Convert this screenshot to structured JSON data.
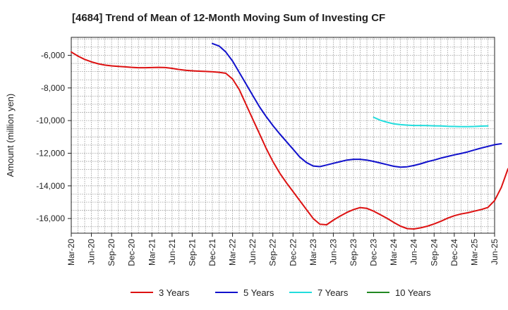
{
  "chart_data": {
    "type": "line",
    "title": "[4684]  Trend of Mean of 12-Month Moving Sum of Investing CF",
    "xlabel": "",
    "ylabel": "Amount (million yen)",
    "ylim": [
      -16900,
      -4900
    ],
    "yticks": [
      -6000,
      -8000,
      -10000,
      -12000,
      -14000,
      -16000
    ],
    "ytick_labels": [
      "-6,000",
      "-8,000",
      "-10,000",
      "-12,000",
      "-14,000",
      "-16,000"
    ],
    "x_start": "Mar-20",
    "x_end": "Jun-25",
    "xtick_labels": [
      "Mar-20",
      "Jun-20",
      "Sep-20",
      "Dec-20",
      "Mar-21",
      "Jun-21",
      "Sep-21",
      "Dec-21",
      "Mar-22",
      "Jun-22",
      "Sep-22",
      "Dec-22",
      "Mar-23",
      "Jun-23",
      "Sep-23",
      "Dec-23",
      "Mar-24",
      "Jun-24",
      "Sep-24",
      "Dec-24",
      "Mar-25",
      "Jun-25"
    ],
    "grid": true,
    "legend_position": "bottom",
    "series": [
      {
        "name": "3 Years",
        "color": "#dd1111",
        "start_month": 0,
        "values": [
          -5800,
          -6050,
          -6250,
          -6400,
          -6520,
          -6600,
          -6650,
          -6680,
          -6710,
          -6740,
          -6760,
          -6760,
          -6750,
          -6740,
          -6750,
          -6800,
          -6870,
          -6920,
          -6950,
          -6970,
          -6990,
          -7010,
          -7040,
          -7100,
          -7450,
          -8100,
          -9000,
          -9900,
          -10800,
          -11700,
          -12500,
          -13200,
          -13800,
          -14350,
          -14900,
          -15450,
          -16000,
          -16350,
          -16380,
          -16100,
          -15850,
          -15630,
          -15450,
          -15330,
          -15380,
          -15550,
          -15770,
          -15990,
          -16240,
          -16470,
          -16620,
          -16640,
          -16570,
          -16470,
          -16330,
          -16170,
          -15980,
          -15830,
          -15720,
          -15650,
          -15550,
          -15450,
          -15320,
          -14900,
          -14100,
          -12950
        ]
      },
      {
        "name": "5 Years",
        "color": "#1111cc",
        "start_month": 21,
        "values": [
          -5280,
          -5430,
          -5800,
          -6350,
          -7050,
          -7750,
          -8450,
          -9150,
          -9750,
          -10300,
          -10800,
          -11280,
          -11750,
          -12230,
          -12570,
          -12780,
          -12820,
          -12720,
          -12620,
          -12520,
          -12420,
          -12370,
          -12370,
          -12420,
          -12500,
          -12600,
          -12700,
          -12800,
          -12850,
          -12830,
          -12750,
          -12650,
          -12520,
          -12420,
          -12300,
          -12200,
          -12100,
          -12020,
          -11920,
          -11800,
          -11680,
          -11580,
          -11480,
          -11420
        ]
      },
      {
        "name": "7 Years",
        "color": "#22dddd",
        "start_month": 45,
        "values": [
          -9800,
          -9980,
          -10100,
          -10200,
          -10250,
          -10280,
          -10300,
          -10300,
          -10310,
          -10320,
          -10330,
          -10350,
          -10360,
          -10370,
          -10370,
          -10360,
          -10340,
          -10330
        ]
      },
      {
        "name": "10 Years",
        "color": "#228822",
        "start_month": 0,
        "values": []
      }
    ]
  }
}
